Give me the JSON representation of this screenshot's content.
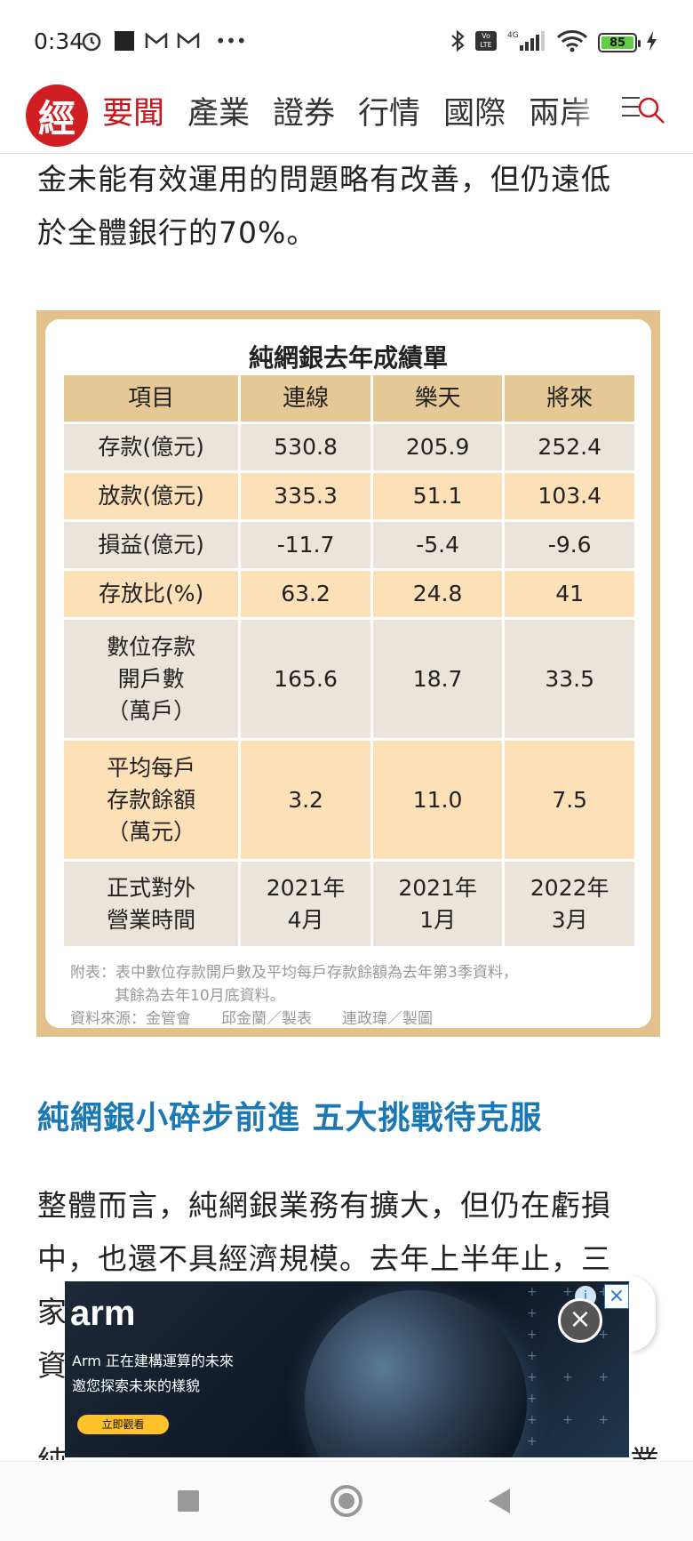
{
  "status_bar": {
    "time": "0:34",
    "battery": "85",
    "network": "4G"
  },
  "nav": {
    "logo": "經",
    "tabs": [
      "要聞",
      "產業",
      "證券",
      "行情",
      "國際",
      "兩岸"
    ]
  },
  "article": {
    "paragraph1_line1": "金未能有效運用的問題略有改善，但仍遠低",
    "paragraph1_line2": "於全體銀行的70%。",
    "section_heading": "純網銀小碎步前進 五大挑戰待克服",
    "paragraph2_line1": "整體而言，純網銀業務有擴大，但仍在虧損",
    "paragraph2_line2": "中，也還不具經濟規模。去年上半年止，三",
    "paragraph2_line3": "家",
    "paragraph2_line4": "資",
    "paragraph3_line1_start": "純",
    "paragraph3_line1_end": "業"
  },
  "infographic": {
    "title": "純網銀去年成績單",
    "headers": [
      "項目",
      "連線",
      "樂天",
      "將來"
    ],
    "rows": [
      {
        "label": "存款(億元)",
        "values": [
          "530.8",
          "205.9",
          "252.4"
        ]
      },
      {
        "label": "放款(億元)",
        "values": [
          "335.3",
          "51.1",
          "103.4"
        ]
      },
      {
        "label": "損益(億元)",
        "values": [
          "-11.7",
          "-5.4",
          "-9.6"
        ]
      },
      {
        "label": "存放比(%)",
        "values": [
          "63.2",
          "24.8",
          "41"
        ]
      },
      {
        "label_lines": [
          "數位存款",
          "開戶數",
          "（萬戶）"
        ],
        "values": [
          "165.6",
          "18.7",
          "33.5"
        ]
      },
      {
        "label_lines": [
          "平均每戶",
          "存款餘額",
          "（萬元）"
        ],
        "values": [
          "3.2",
          "11.0",
          "7.5"
        ]
      },
      {
        "label_lines": [
          "正式對外",
          "營業時間"
        ],
        "values_lines": [
          [
            "2021年",
            "4月"
          ],
          [
            "2021年",
            "1月"
          ],
          [
            "2022年",
            "3月"
          ]
        ]
      }
    ],
    "note_line1": "附表：表中數位存款開戶數及平均每戶存款餘額為去年第3季資料，",
    "note_line2": "其餘為去年10月底資料。",
    "source": "資料來源：金管會　　邱金蘭／製表　　連政瑋／製圖"
  },
  "ad": {
    "brand": "arm",
    "line1": "Arm 正在建構運算的未來",
    "line2": "邀您探索未來的樣貌",
    "cta": "立即觀看"
  }
}
